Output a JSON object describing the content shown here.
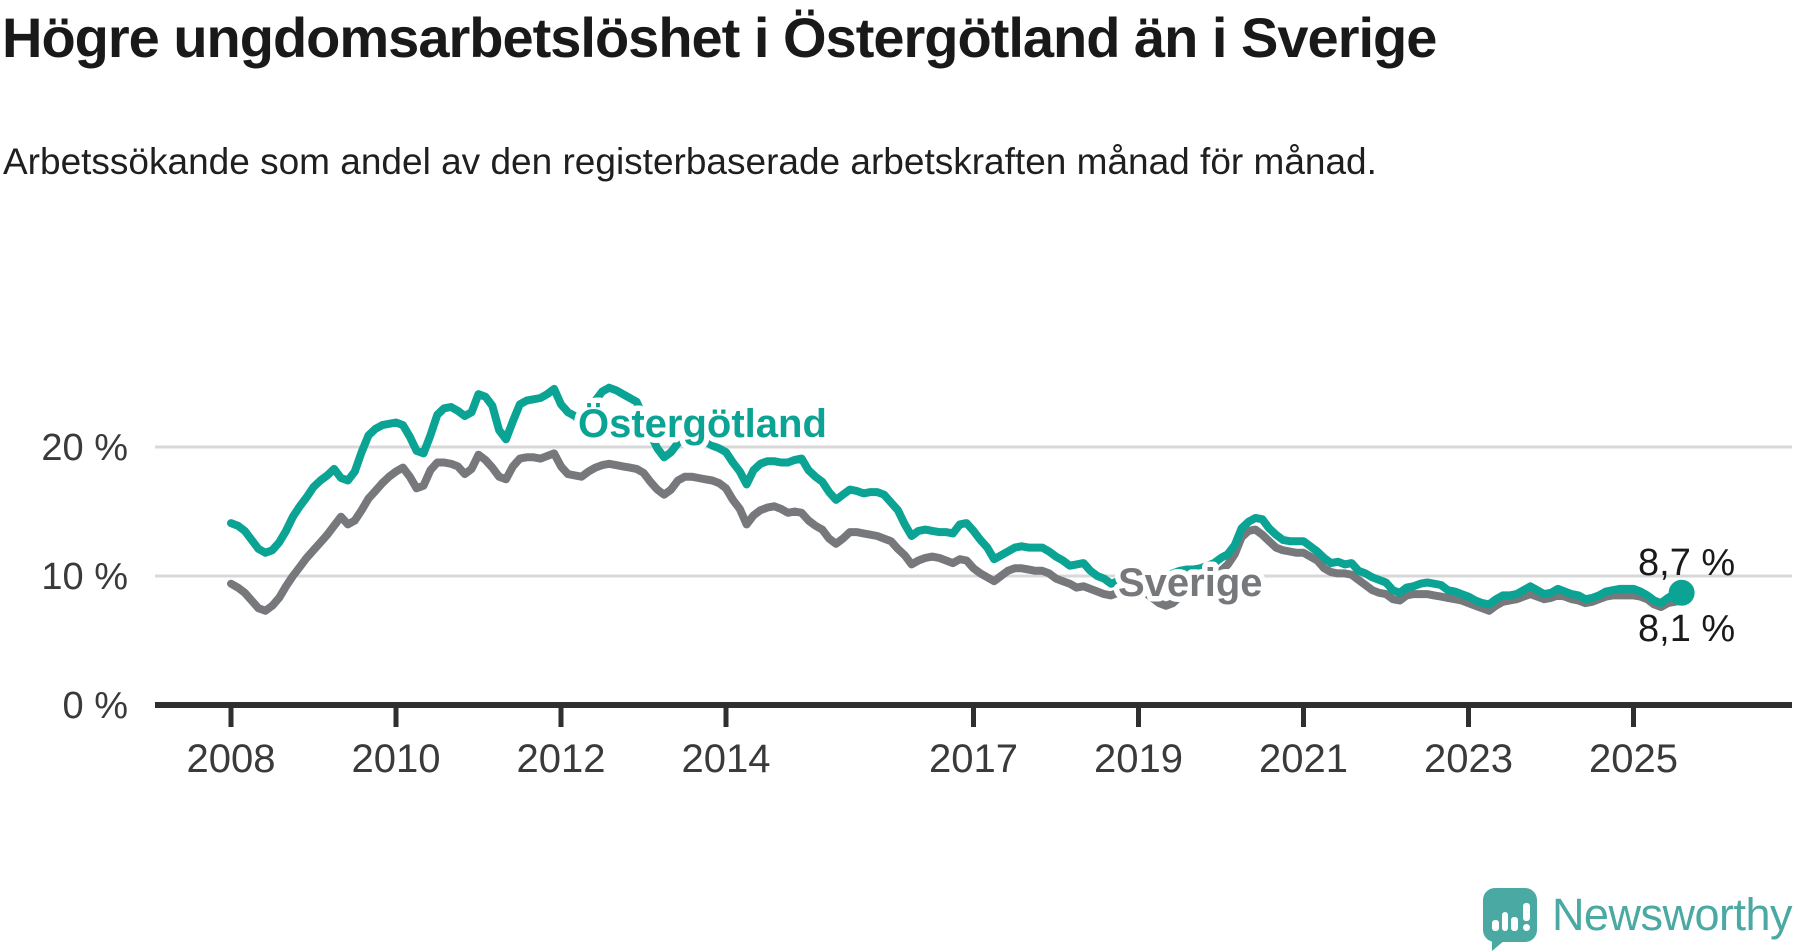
{
  "title": "Högre ungdomsarbetslöshet i Östergötland än i Sverige",
  "subtitle": "Arbetssökande som andel av den registerbaserade arbetskraften månad för månad.",
  "series_labels": {
    "ostergotland": "Östergötland",
    "sverige": "Sverige"
  },
  "end_labels": {
    "ostergotland": "8,7 %",
    "sverige": "8,1 %"
  },
  "logo": {
    "text": "Newsworthy",
    "color": "#4aa9a2"
  },
  "colors": {
    "ostergotland": "#0ba394",
    "sverige": "#77787b",
    "grid": "#d8d8d8",
    "axis": "#2f2f2f",
    "tick_text": "#3a3a3a",
    "end_label_text": "#1a1a1a"
  },
  "chart_data": {
    "type": "line",
    "title": "Högre ungdomsarbetslöshet i Östergötland än i Sverige",
    "subtitle": "Arbetssökande som andel av den registerbaserade arbetskraften månad för månad.",
    "x_monthly_start": "2008-01",
    "x_monthly_end": "2025-08",
    "xlabel": "",
    "ylabel": "%",
    "ylim": [
      0,
      27
    ],
    "grid": "horizontal",
    "legend": "inline-labels",
    "y_ticks": [
      {
        "value": 0,
        "label": "0 %"
      },
      {
        "value": 10,
        "label": "10 %"
      },
      {
        "value": 20,
        "label": "20 %"
      }
    ],
    "x_ticks": [
      2008,
      2010,
      2012,
      2014,
      2017,
      2019,
      2021,
      2023,
      2025
    ],
    "series": [
      {
        "name": "Östergötland",
        "color": "#0ba394",
        "end_value_label": "8,7 %",
        "values": [
          14.1,
          13.9,
          13.5,
          12.8,
          12.1,
          11.8,
          12.0,
          12.6,
          13.5,
          14.6,
          15.4,
          16.1,
          16.9,
          17.4,
          17.8,
          18.3,
          17.6,
          17.4,
          18.1,
          19.6,
          20.9,
          21.4,
          21.7,
          21.8,
          21.9,
          21.7,
          20.8,
          19.7,
          19.5,
          20.9,
          22.5,
          23.0,
          23.1,
          22.8,
          22.4,
          22.7,
          24.1,
          23.9,
          23.2,
          21.3,
          20.6,
          22.0,
          23.3,
          23.6,
          23.7,
          23.8,
          24.1,
          24.5,
          23.3,
          22.7,
          22.4,
          21.9,
          22.6,
          23.6,
          24.3,
          24.6,
          24.4,
          24.1,
          23.8,
          23.5,
          22.3,
          21.0,
          19.9,
          19.2,
          19.6,
          20.3,
          20.8,
          20.9,
          20.7,
          20.4,
          20.1,
          19.9,
          19.6,
          18.8,
          18.1,
          17.1,
          18.2,
          18.7,
          18.9,
          18.9,
          18.8,
          18.8,
          19.0,
          19.1,
          18.2,
          17.7,
          17.3,
          16.5,
          15.9,
          16.3,
          16.7,
          16.6,
          16.4,
          16.5,
          16.5,
          16.3,
          15.7,
          15.1,
          14.0,
          13.1,
          13.5,
          13.6,
          13.5,
          13.4,
          13.4,
          13.3,
          14.0,
          14.1,
          13.5,
          12.8,
          12.2,
          11.3,
          11.6,
          11.9,
          12.2,
          12.3,
          12.2,
          12.2,
          12.2,
          11.9,
          11.5,
          11.2,
          10.8,
          10.9,
          11.0,
          10.4,
          10.0,
          9.8,
          9.4,
          9.6,
          10.0,
          10.2,
          10.2,
          10.1,
          10.0,
          9.9,
          10.0,
          10.2,
          10.4,
          10.5,
          10.5,
          10.6,
          10.8,
          11.0,
          11.4,
          11.7,
          12.4,
          13.7,
          14.2,
          14.5,
          14.4,
          13.7,
          13.2,
          12.8,
          12.7,
          12.7,
          12.7,
          12.3,
          11.9,
          11.4,
          11.0,
          11.1,
          10.9,
          11.0,
          10.4,
          10.2,
          9.9,
          9.7,
          9.5,
          8.9,
          8.7,
          9.1,
          9.2,
          9.4,
          9.5,
          9.4,
          9.3,
          8.9,
          8.8,
          8.6,
          8.4,
          8.1,
          7.9,
          7.8,
          8.2,
          8.5,
          8.5,
          8.6,
          8.9,
          9.2,
          8.9,
          8.6,
          8.7,
          9.0,
          8.8,
          8.6,
          8.5,
          8.2,
          8.3,
          8.5,
          8.8,
          8.9,
          9.0,
          9.0,
          9.0,
          8.8,
          8.5,
          8.1,
          7.9,
          8.3,
          8.6,
          8.7
        ]
      },
      {
        "name": "Sverige",
        "color": "#77787b",
        "end_value_label": "8,1 %",
        "values": [
          9.4,
          9.1,
          8.7,
          8.1,
          7.5,
          7.3,
          7.7,
          8.3,
          9.2,
          10.0,
          10.7,
          11.4,
          12.0,
          12.6,
          13.2,
          13.9,
          14.6,
          14.0,
          14.3,
          15.1,
          16.0,
          16.6,
          17.2,
          17.7,
          18.1,
          18.4,
          17.7,
          16.8,
          17.0,
          18.2,
          18.8,
          18.8,
          18.7,
          18.5,
          17.9,
          18.3,
          19.4,
          19.0,
          18.4,
          17.7,
          17.5,
          18.5,
          19.1,
          19.2,
          19.2,
          19.1,
          19.3,
          19.5,
          18.5,
          17.9,
          17.8,
          17.7,
          18.1,
          18.4,
          18.6,
          18.7,
          18.6,
          18.5,
          18.4,
          18.3,
          18.0,
          17.3,
          16.7,
          16.3,
          16.7,
          17.4,
          17.7,
          17.7,
          17.6,
          17.5,
          17.4,
          17.2,
          16.8,
          15.9,
          15.2,
          14.0,
          14.7,
          15.1,
          15.3,
          15.4,
          15.2,
          14.9,
          15.0,
          14.9,
          14.3,
          13.9,
          13.6,
          12.9,
          12.5,
          12.9,
          13.4,
          13.4,
          13.3,
          13.2,
          13.1,
          12.9,
          12.7,
          12.1,
          11.6,
          10.9,
          11.2,
          11.4,
          11.5,
          11.4,
          11.2,
          11.0,
          11.3,
          11.2,
          10.6,
          10.2,
          9.9,
          9.6,
          10.0,
          10.4,
          10.6,
          10.6,
          10.5,
          10.4,
          10.4,
          10.2,
          9.8,
          9.6,
          9.4,
          9.1,
          9.2,
          9.0,
          8.8,
          8.6,
          8.5,
          8.7,
          9.0,
          9.1,
          9.0,
          8.7,
          8.3,
          7.9,
          7.7,
          7.9,
          8.4,
          8.7,
          8.9,
          9.2,
          9.6,
          10.0,
          10.4,
          10.9,
          11.7,
          13.0,
          13.5,
          13.6,
          13.2,
          12.7,
          12.2,
          12.0,
          11.9,
          11.8,
          11.8,
          11.5,
          11.2,
          10.6,
          10.3,
          10.2,
          10.2,
          10.1,
          9.7,
          9.3,
          8.9,
          8.7,
          8.6,
          8.2,
          8.1,
          8.5,
          8.6,
          8.6,
          8.6,
          8.5,
          8.4,
          8.3,
          8.2,
          8.1,
          7.9,
          7.7,
          7.5,
          7.3,
          7.7,
          8.0,
          8.1,
          8.2,
          8.4,
          8.6,
          8.4,
          8.2,
          8.3,
          8.5,
          8.4,
          8.2,
          8.1,
          7.9,
          8.0,
          8.2,
          8.4,
          8.5,
          8.5,
          8.5,
          8.5,
          8.4,
          8.2,
          7.8,
          7.6,
          7.9,
          8.0,
          8.1
        ]
      }
    ]
  }
}
